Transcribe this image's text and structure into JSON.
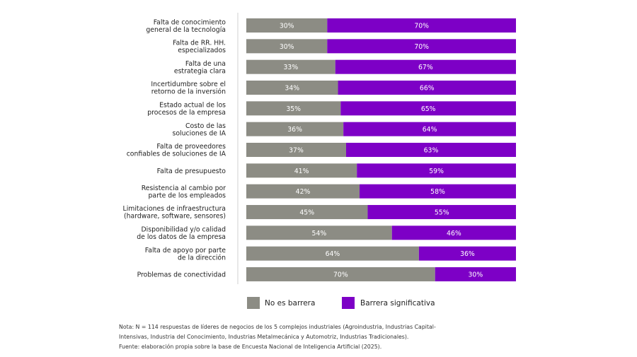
{
  "chart_data": {
    "type": "bar",
    "orientation": "horizontal",
    "stacked": true,
    "percent": true,
    "categories": [
      [
        "Falta de conocimiento",
        "general de la tecnología"
      ],
      [
        "Falta de RR. HH.",
        "especializados"
      ],
      [
        "Falta de una",
        "estrategia clara"
      ],
      [
        "Incertidumbre sobre el",
        "retorno de la inversión"
      ],
      [
        "Estado actual de los",
        "procesos de la empresa"
      ],
      [
        "Costo de las",
        "soluciones de IA"
      ],
      [
        "Falta de proveedores",
        "confiables de soluciones de IA"
      ],
      [
        "Falta de presupuesto"
      ],
      [
        "Resistencia al cambio por",
        "parte de los empleados"
      ],
      [
        "Limitaciones de infraestructura",
        "(hardware, software, sensores)"
      ],
      [
        "Disponibilidad y/o calidad",
        "de los datos de la empresa"
      ],
      [
        "Falta de apoyo por parte",
        "de la dirección"
      ],
      [
        "Problemas de conectividad"
      ]
    ],
    "series": [
      {
        "name": "No es barrera",
        "color": "#8c8c84",
        "values": [
          30,
          30,
          33,
          34,
          35,
          36,
          37,
          41,
          42,
          45,
          54,
          64,
          70
        ]
      },
      {
        "name": "Barrera significativa",
        "color": "#7d00c6",
        "values": [
          70,
          70,
          67,
          66,
          65,
          64,
          63,
          59,
          58,
          55,
          46,
          36,
          30
        ]
      }
    ],
    "xlim": [
      0,
      100
    ],
    "grid": false,
    "legend_placement": "bottom"
  },
  "notes": [
    "Nota: N = 114 respuestas de líderes de negocios de los 5 complejos industriales (Agroindustria, Industrias Capital-",
    "Intensivas, Industria del Conocimiento, Industrias Metalmecánica y Automotriz, Industrias Tradicionales).",
    "Fuente: elaboración propia sobre la base de Encuesta Nacional de Inteligencia Artificial (2025)."
  ]
}
